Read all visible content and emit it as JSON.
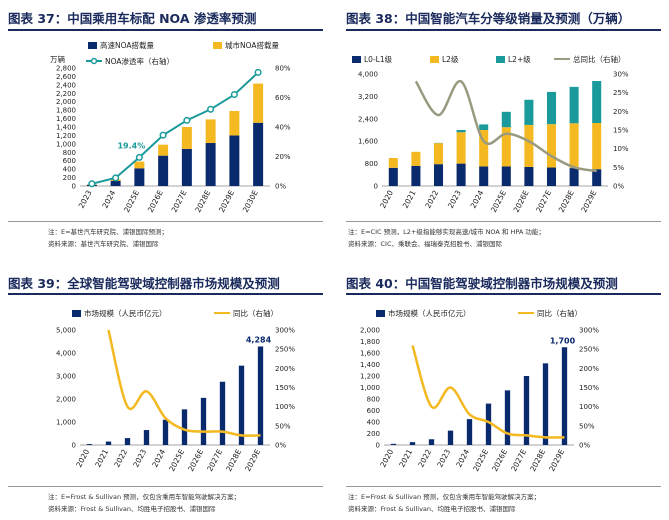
{
  "colors": {
    "navy": "#0a2a6e",
    "gold": "#f4b921",
    "teal": "#1a9a9a",
    "gray_line": "#9a9a80",
    "title": "#1a2a5c"
  },
  "chart_data": [
    {
      "type": "bar",
      "title": "图表 37：中国乘用车标配 NOA 渗透率预测",
      "unit_label": "万辆",
      "categories": [
        "2023",
        "2024",
        "2025E",
        "2026E",
        "2027E",
        "2028E",
        "2029E",
        "2030E"
      ],
      "series": [
        {
          "name": "高速NOA搭载量",
          "values": [
            30,
            120,
            420,
            720,
            880,
            1020,
            1200,
            1500
          ],
          "kind": "bar"
        },
        {
          "name": "城市NOA搭载量",
          "values": [
            10,
            40,
            160,
            260,
            520,
            560,
            580,
            930
          ],
          "kind": "bar"
        },
        {
          "name": "NOA渗透率（右轴）",
          "values": [
            1.5,
            5.5,
            19.4,
            34.5,
            44.5,
            52,
            62,
            77
          ],
          "kind": "line"
        }
      ],
      "ylim": [
        0,
        2800
      ],
      "yticks": [
        "0",
        "200",
        "400",
        "600",
        "800",
        "1,000",
        "1,200",
        "1,400",
        "1,600",
        "1,800",
        "2,000",
        "2,200",
        "2,400",
        "2,600",
        "2,800"
      ],
      "y2lim": [
        0,
        80
      ],
      "y2ticks": [
        "0%",
        "20%",
        "40%",
        "60%",
        "80%"
      ],
      "annotation": "19.4%",
      "note": "注：E=基世汽车研究院、浦银国际预测；",
      "source": "资料来源：基世汽车研究院、浦银国际"
    },
    {
      "type": "bar",
      "title": "图表 38：中国智能汽车分等级销量及预测（万辆）",
      "categories": [
        "2020",
        "2021",
        "2022",
        "2023",
        "2024",
        "2025E",
        "2026E",
        "2027E",
        "2028E",
        "2029E"
      ],
      "series": [
        {
          "name": "L0-L1级",
          "values": [
            650,
            720,
            780,
            800,
            700,
            700,
            680,
            660,
            640,
            600
          ],
          "kind": "bar"
        },
        {
          "name": "L2级",
          "values": [
            350,
            500,
            750,
            1120,
            1300,
            1400,
            1500,
            1550,
            1600,
            1650
          ],
          "kind": "bar"
        },
        {
          "name": "L2+级",
          "values": [
            0,
            0,
            10,
            80,
            200,
            550,
            900,
            1150,
            1300,
            1500
          ],
          "kind": "bar"
        },
        {
          "name": "总同比（右轴）",
          "values": [
            null,
            28,
            19,
            28,
            12,
            14,
            12,
            8,
            5,
            4
          ],
          "kind": "line"
        }
      ],
      "ylim": [
        0,
        4000
      ],
      "yticks": [
        "0",
        "800",
        "1,600",
        "2,400",
        "3,200",
        "4,000"
      ],
      "y2lim": [
        0,
        30
      ],
      "y2ticks": [
        "0%",
        "5%",
        "10%",
        "15%",
        "20%",
        "25%",
        "30%"
      ],
      "note": "注：E=CIC 预测，L2+级指能够实现高速/城市 NOA 和 HPA 功能；",
      "source": "资料来源：CIC、乘联会、福瑞泰克招股书、浦银国际"
    },
    {
      "type": "bar",
      "title": "图表 39：全球智能驾驶域控制器市场规模及预测",
      "categories": [
        "2020",
        "2021",
        "2022",
        "2023",
        "2024",
        "2025E",
        "2026E",
        "2027E",
        "2028E",
        "2029E"
      ],
      "series": [
        {
          "name": "市场规模（人民币亿元）",
          "values": [
            40,
            150,
            300,
            650,
            1100,
            1550,
            2050,
            2750,
            3450,
            4284
          ],
          "kind": "bar"
        },
        {
          "name": "同比（右轴）",
          "values": [
            null,
            300,
            100,
            140,
            70,
            40,
            35,
            35,
            25,
            25
          ],
          "kind": "line"
        }
      ],
      "ylim": [
        0,
        5000
      ],
      "yticks": [
        "0",
        "1,000",
        "2,000",
        "3,000",
        "4,000",
        "5,000"
      ],
      "y2lim": [
        0,
        300
      ],
      "y2ticks": [
        "0%",
        "50%",
        "100%",
        "150%",
        "200%",
        "250%",
        "300%"
      ],
      "annotation": "4,284",
      "note": "注：E=Frost & Sullivan 预测，仅包含乘用车智能驾驶解决方案；",
      "source": "资料来源：Frost & Sullivan、均胜电子招股书、浦银国际"
    },
    {
      "type": "bar",
      "title": "图表 40：中国智能驾驶域控制器市场规模及预测",
      "categories": [
        "2020",
        "2021",
        "2022",
        "2023",
        "2024",
        "2025E",
        "2026E",
        "2027E",
        "2028E",
        "2029E"
      ],
      "series": [
        {
          "name": "市场规模（人民币亿元）",
          "values": [
            20,
            50,
            100,
            250,
            450,
            720,
            950,
            1200,
            1420,
            1700
          ],
          "kind": "bar"
        },
        {
          "name": "同比（右轴）",
          "values": [
            null,
            260,
            100,
            150,
            80,
            60,
            30,
            25,
            20,
            20
          ],
          "kind": "line"
        }
      ],
      "ylim": [
        0,
        2000
      ],
      "yticks": [
        "0",
        "200",
        "400",
        "600",
        "800",
        "1,000",
        "1,200",
        "1,400",
        "1,600",
        "1,800",
        "2,000"
      ],
      "y2lim": [
        0,
        300
      ],
      "y2ticks": [
        "0%",
        "50%",
        "100%",
        "150%",
        "200%",
        "250%",
        "300%"
      ],
      "annotation": "1,700",
      "note": "注：E=Frost & Sullivan 预测，仅包含乘用车智能驾驶解决方案；",
      "source": "资料来源：Frost & Sullivan、均胜电子招股书、浦银国际"
    }
  ]
}
